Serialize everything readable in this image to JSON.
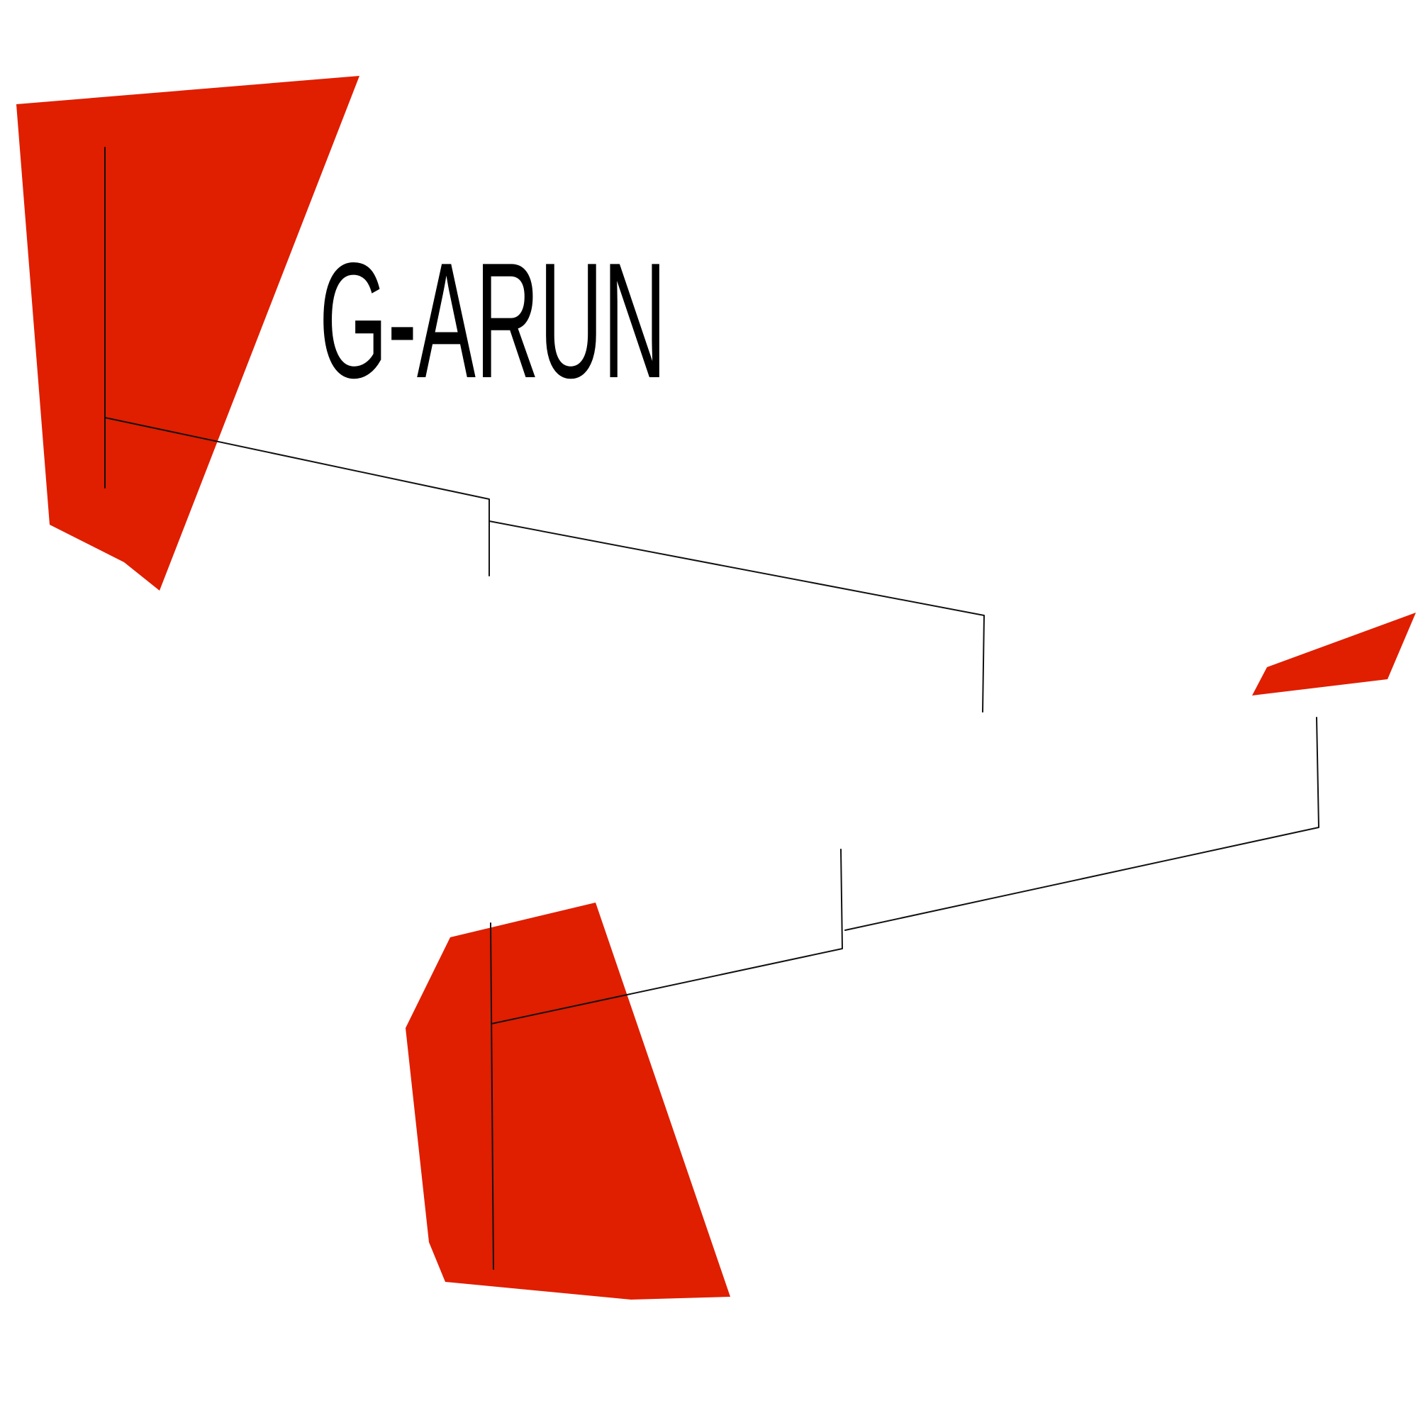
{
  "registration": "G-ARUN",
  "colors": {
    "accent_red": "#e01e00",
    "line": "#111111",
    "background": "#ffffff"
  }
}
